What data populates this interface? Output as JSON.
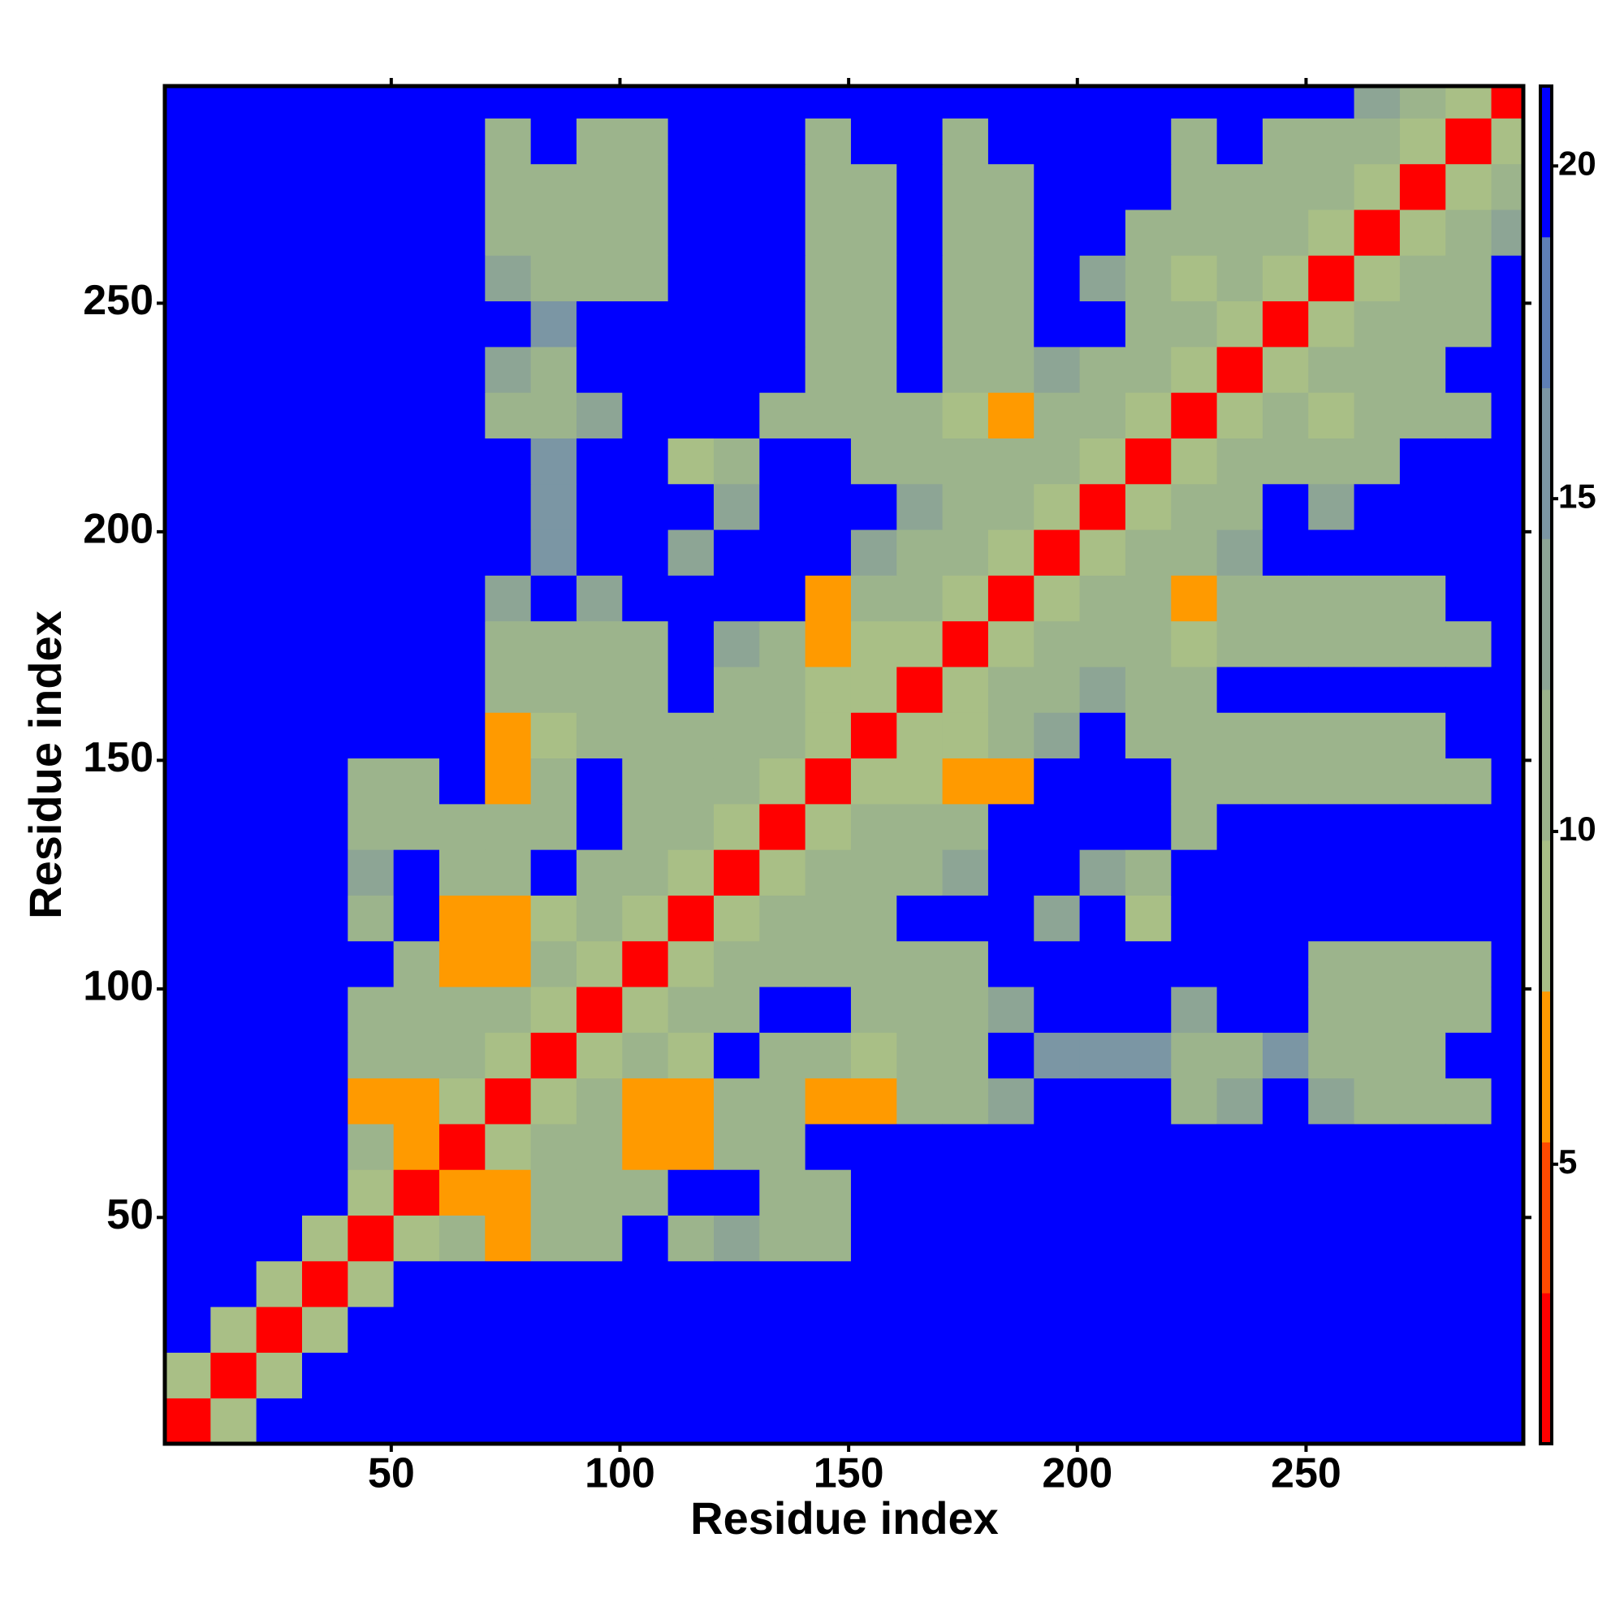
{
  "chart_data": {
    "type": "heatmap",
    "xlabel": "Residue index",
    "ylabel": "Residue index",
    "xlim": [
      0.5,
      297.5
    ],
    "ylim": [
      0.5,
      297.5
    ],
    "xticks": [
      50,
      100,
      150,
      200,
      250
    ],
    "yticks": [
      50,
      100,
      150,
      200,
      250
    ],
    "zlim": [
      0.8,
      21.2
    ],
    "zticks": [
      5,
      10,
      15,
      20
    ],
    "colormap": [
      "#ff0000",
      "#ff4a00",
      "#ff9a00",
      "#a9bf86",
      "#9cb48c",
      "#8da595",
      "#7b96a4",
      "#5e7fb6",
      "#0000ff"
    ],
    "symmetric": true,
    "xbins": [
      0.5,
      10.5,
      20.5,
      30.5,
      40.5,
      50.5,
      60.5,
      70.5,
      80.5,
      90.5,
      100.5,
      110.5,
      120.5,
      130.5,
      140.5,
      150.5,
      160.5,
      170.5,
      180.5,
      190.5,
      200.5,
      210.5,
      220.5,
      230.5,
      240.5,
      250.5,
      260.5,
      270.5,
      280.5,
      290.5,
      297.5
    ],
    "ybins": [
      0.5,
      10.5,
      20.5,
      30.5,
      40.5,
      50.5,
      60.5,
      70.5,
      80.5,
      90.5,
      100.5,
      110.5,
      120.5,
      130.5,
      140.5,
      150.5,
      160.5,
      170.5,
      180.5,
      190.5,
      200.5,
      210.5,
      220.5,
      230.5,
      240.5,
      250.5,
      260.5,
      270.5,
      280.5,
      290.5,
      297.5
    ],
    "values": [
      [
        3
      ],
      [
        9,
        3
      ],
      [
        21,
        9,
        3
      ],
      [
        21,
        21,
        9,
        3
      ],
      [
        21,
        21,
        21,
        9,
        3
      ],
      [
        21,
        21,
        21,
        21,
        9,
        3
      ],
      [
        21,
        21,
        21,
        21,
        12,
        7,
        3
      ],
      [
        21,
        21,
        21,
        21,
        7,
        7,
        9,
        3
      ],
      [
        21,
        21,
        21,
        21,
        11,
        12,
        11,
        9,
        3
      ],
      [
        21,
        21,
        21,
        21,
        10,
        11,
        12,
        11,
        9,
        3
      ],
      [
        21,
        21,
        21,
        21,
        21,
        12,
        7,
        7,
        10,
        9,
        3
      ],
      [
        21,
        21,
        21,
        21,
        12,
        21,
        7,
        7,
        8,
        11,
        9,
        3
      ],
      [
        21,
        21,
        21,
        21,
        13,
        21,
        11,
        11,
        21,
        12,
        11,
        9,
        3
      ],
      [
        21,
        21,
        21,
        21,
        11,
        11,
        12,
        11,
        11,
        21,
        11,
        10,
        9,
        3
      ],
      [
        21,
        21,
        21,
        21,
        12,
        11,
        21,
        7,
        11,
        21,
        11,
        12,
        10,
        9,
        3
      ],
      [
        21,
        21,
        21,
        21,
        21,
        21,
        21,
        7,
        8,
        12,
        11,
        11,
        10,
        10,
        9,
        3
      ],
      [
        21,
        21,
        21,
        21,
        21,
        21,
        21,
        12,
        12,
        12,
        11,
        21,
        10,
        10,
        8,
        9,
        3
      ],
      [
        21,
        21,
        21,
        21,
        21,
        21,
        21,
        11,
        11,
        11,
        12,
        21,
        13,
        11,
        7,
        8,
        9,
        3
      ],
      [
        21,
        21,
        21,
        21,
        21,
        21,
        21,
        13,
        21,
        14,
        21,
        21,
        21,
        21,
        7,
        10,
        10,
        9,
        3
      ],
      [
        21,
        21,
        21,
        21,
        21,
        21,
        21,
        21,
        15,
        21,
        21,
        14,
        21,
        21,
        21,
        13,
        12,
        11,
        9,
        3
      ],
      [
        21,
        21,
        21,
        21,
        21,
        21,
        21,
        21,
        15,
        21,
        21,
        21,
        13,
        21,
        21,
        21,
        14,
        12,
        11,
        9,
        3
      ],
      [
        21,
        21,
        21,
        21,
        21,
        21,
        21,
        21,
        15,
        21,
        21,
        8,
        10,
        21,
        21,
        12,
        12,
        11,
        12,
        10,
        9,
        3
      ],
      [
        21,
        21,
        21,
        21,
        21,
        21,
        21,
        12,
        11,
        13,
        21,
        21,
        21,
        12,
        11,
        10,
        12,
        8,
        7,
        12,
        11,
        9,
        3
      ],
      [
        21,
        21,
        21,
        21,
        21,
        21,
        21,
        13,
        12,
        21,
        21,
        21,
        21,
        21,
        12,
        11,
        21,
        10,
        11,
        13,
        12,
        10,
        9,
        3
      ],
      [
        21,
        21,
        21,
        21,
        21,
        21,
        21,
        21,
        15,
        21,
        21,
        21,
        21,
        21,
        12,
        12,
        21,
        11,
        11,
        21,
        21,
        12,
        11,
        9,
        3
      ],
      [
        21,
        21,
        21,
        21,
        21,
        21,
        21,
        13,
        12,
        12,
        11,
        21,
        21,
        21,
        12,
        11,
        21,
        11,
        12,
        21,
        13,
        12,
        8,
        10,
        9,
        3
      ],
      [
        21,
        21,
        21,
        21,
        21,
        21,
        21,
        11,
        11,
        10,
        11,
        21,
        21,
        21,
        11,
        10,
        21,
        11,
        11,
        21,
        21,
        12,
        11,
        10,
        10,
        9,
        3
      ],
      [
        21,
        21,
        21,
        21,
        21,
        21,
        21,
        10,
        10,
        11,
        11,
        21,
        21,
        21,
        11,
        12,
        21,
        10,
        12,
        21,
        21,
        21,
        10,
        11,
        11,
        10,
        9,
        3
      ],
      [
        21,
        21,
        21,
        21,
        21,
        21,
        21,
        12,
        21,
        12,
        12,
        21,
        21,
        21,
        12,
        21,
        21,
        11,
        21,
        21,
        21,
        21,
        11,
        21,
        12,
        11,
        10,
        9,
        3
      ],
      [
        21,
        21,
        21,
        21,
        21,
        21,
        21,
        21,
        21,
        21,
        21,
        21,
        21,
        21,
        21,
        21,
        21,
        21,
        21,
        21,
        21,
        21,
        21,
        21,
        21,
        21,
        13,
        10,
        9,
        3
      ]
    ]
  }
}
